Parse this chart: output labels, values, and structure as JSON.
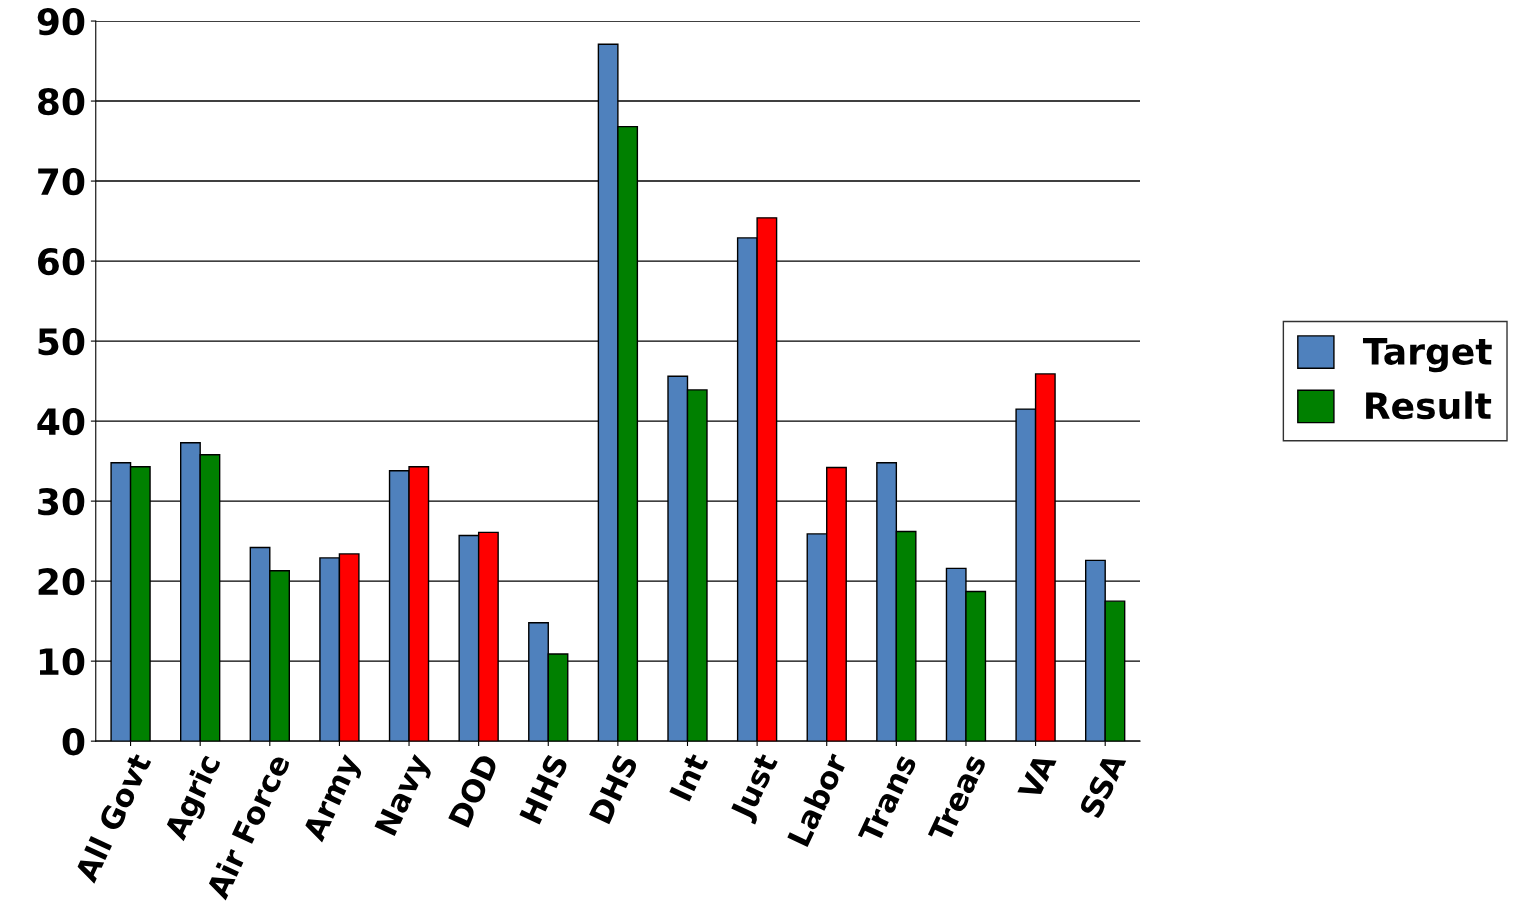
{
  "chart_data": {
    "type": "bar",
    "categories": [
      "All Govt",
      "Agric",
      "Air Force",
      "Army",
      "Navy",
      "DOD",
      "HHS",
      "DHS",
      "Int",
      "Just",
      "Labor",
      "Trans",
      "Treas",
      "VA",
      "SSA"
    ],
    "series": [
      {
        "name": "Target",
        "color": "#4f81bd",
        "values": [
          34.8,
          37.3,
          24.2,
          22.9,
          33.8,
          25.7,
          14.8,
          87.1,
          45.6,
          62.9,
          25.9,
          34.8,
          21.6,
          41.5,
          22.6
        ]
      },
      {
        "name": "Result",
        "color": "#008000",
        "colors": [
          "#008000",
          "#008000",
          "#008000",
          "#ff0000",
          "#ff0000",
          "#ff0000",
          "#008000",
          "#008000",
          "#008000",
          "#ff0000",
          "#ff0000",
          "#008000",
          "#008000",
          "#ff0000",
          "#008000"
        ],
        "values": [
          34.3,
          35.8,
          21.3,
          23.4,
          34.3,
          26.1,
          10.9,
          76.8,
          43.9,
          65.4,
          34.2,
          26.2,
          18.7,
          45.9,
          17.5
        ]
      }
    ],
    "ylim": [
      0,
      90
    ],
    "yticks": [
      0,
      10,
      20,
      30,
      40,
      50,
      60,
      70,
      80,
      90
    ],
    "grid": "y",
    "legend": "right"
  }
}
